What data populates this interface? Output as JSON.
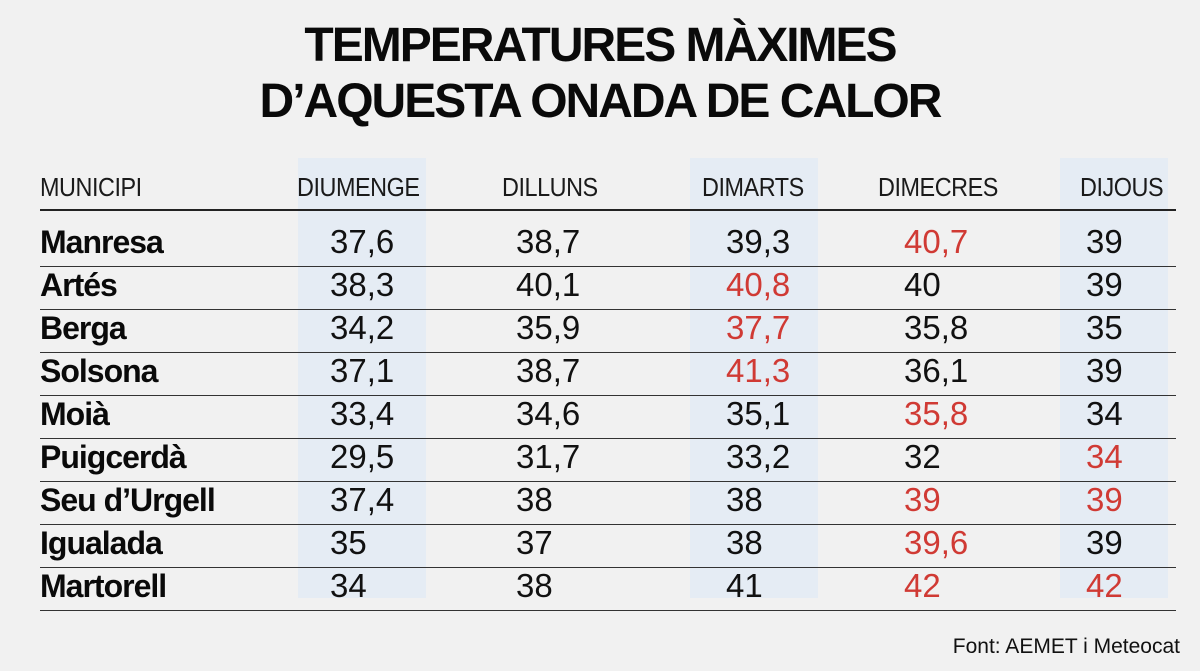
{
  "title_lines": [
    "TEMPERATURES MÀXIMES",
    "D’AQUESTA ONADA DE CALOR"
  ],
  "source": "Font: AEMET i Meteocat",
  "chart_data": {
    "type": "table",
    "title": "TEMPERATURES MÀXIMES D’AQUESTA ONADA DE CALOR",
    "row_header": "MUNICIPI",
    "columns": [
      "DIUMENGE",
      "DILLUNS",
      "DIMARTS",
      "DIMECRES",
      "DIJOUS"
    ],
    "highlight_color": "#d03a34",
    "band_color": "#e5ecf4",
    "rows": [
      {
        "municipi": "Manresa",
        "values": [
          "37,6",
          "38,7",
          "39,3",
          "40,7",
          "39"
        ],
        "max_index": [
          3
        ]
      },
      {
        "municipi": "Artés",
        "values": [
          "38,3",
          "40,1",
          "40,8",
          "40",
          "39"
        ],
        "max_index": [
          2
        ]
      },
      {
        "municipi": "Berga",
        "values": [
          "34,2",
          "35,9",
          "37,7",
          "35,8",
          "35"
        ],
        "max_index": [
          2
        ]
      },
      {
        "municipi": "Solsona",
        "values": [
          "37,1",
          "38,7",
          "41,3",
          "36,1",
          "39"
        ],
        "max_index": [
          2
        ]
      },
      {
        "municipi": "Moià",
        "values": [
          "33,4",
          "34,6",
          "35,1",
          "35,8",
          "34"
        ],
        "max_index": [
          3
        ]
      },
      {
        "municipi": "Puigcerdà",
        "values": [
          "29,5",
          "31,7",
          "33,2",
          "32",
          "34"
        ],
        "max_index": [
          4
        ]
      },
      {
        "municipi": "Seu d’Urgell",
        "values": [
          "37,4",
          "38",
          "38",
          "39",
          "39"
        ],
        "max_index": [
          3,
          4
        ]
      },
      {
        "municipi": "Igualada",
        "values": [
          "35",
          "37",
          "38",
          "39,6",
          "39"
        ],
        "max_index": [
          3
        ]
      },
      {
        "municipi": "Martorell",
        "values": [
          "34",
          "38",
          "41",
          "42",
          "42"
        ],
        "max_index": [
          3,
          4
        ]
      }
    ]
  }
}
